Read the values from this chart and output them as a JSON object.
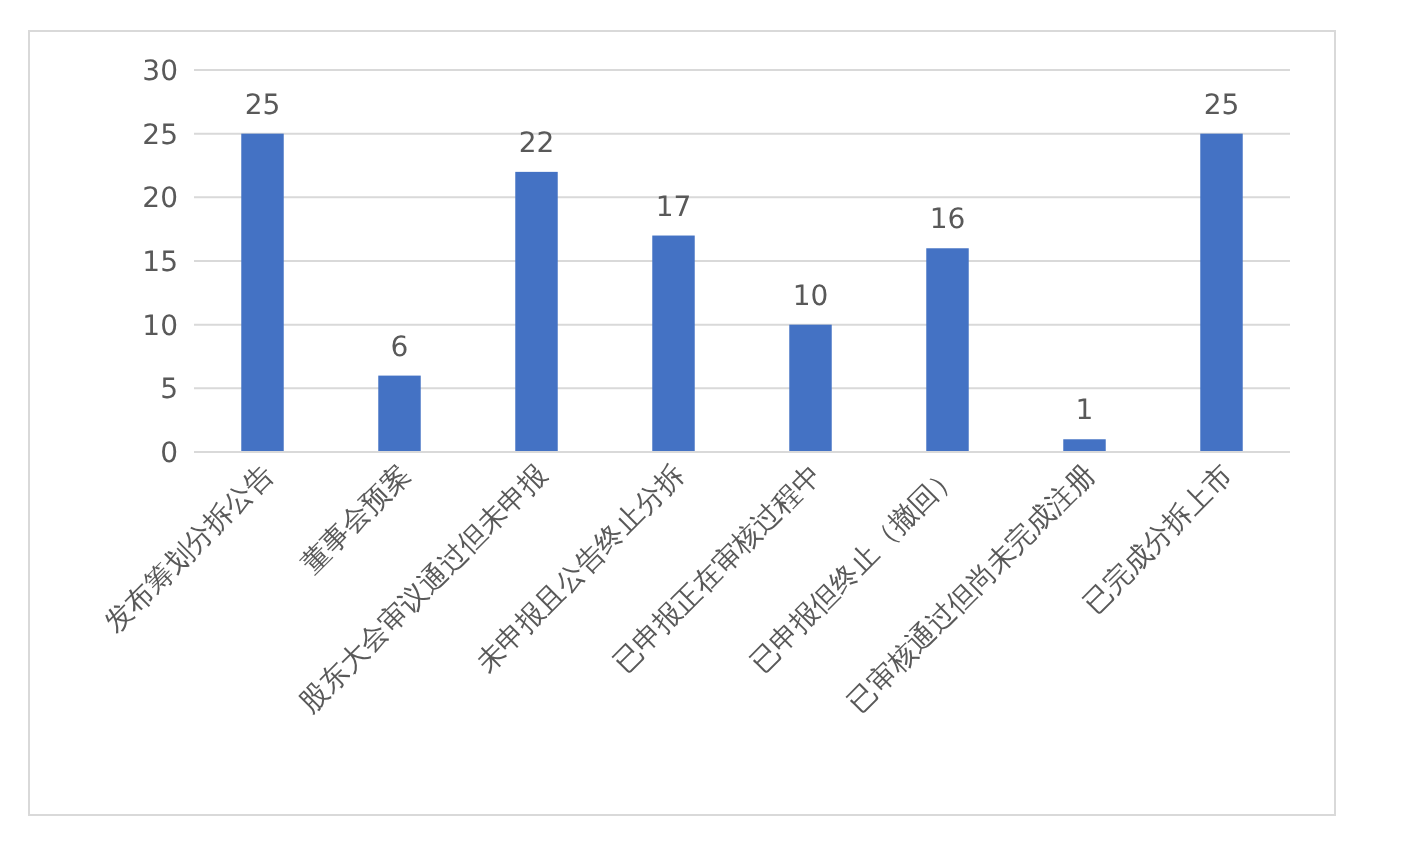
{
  "chart_data": {
    "type": "bar",
    "categories": [
      "发布筹划分拆公告",
      "董事会预案",
      "股东大会审议通过但未申报",
      "未申报且公告终止分拆",
      "已申报正在审核过程中",
      "已申报但终止（撤回）",
      "已审核通过但尚未完成注册",
      "已完成分拆上市"
    ],
    "values": [
      25,
      6,
      22,
      17,
      10,
      16,
      1,
      25
    ],
    "color": "#4472c4",
    "ylim": [
      0,
      30
    ],
    "yticks": [
      0,
      5,
      10,
      15,
      20,
      25,
      30
    ],
    "grid": "y",
    "data_labels": true
  }
}
